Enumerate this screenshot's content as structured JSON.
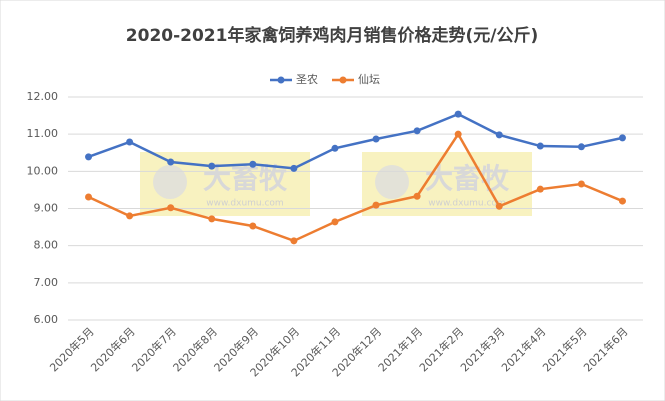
{
  "chart_data": {
    "type": "line",
    "title": "2020-2021年家禽饲养鸡肉月销售价格走势(元/公斤)",
    "categories": [
      "2020年5月",
      "2020年6月",
      "2020年7月",
      "2020年8月",
      "2020年9月",
      "2020年10月",
      "2020年11月",
      "2020年12月",
      "2021年1月",
      "2021年2月",
      "2021年3月",
      "2021年4月",
      "2021年5月",
      "2021年6月"
    ],
    "series": [
      {
        "name": "圣农",
        "color": "#4472c4",
        "values": [
          10.39,
          10.79,
          10.25,
          10.14,
          10.19,
          10.08,
          10.62,
          10.87,
          11.09,
          11.54,
          10.98,
          10.68,
          10.66,
          10.9
        ]
      },
      {
        "name": "仙坛",
        "color": "#ed7d31",
        "values": [
          9.31,
          8.8,
          9.02,
          8.72,
          8.53,
          8.13,
          8.64,
          9.09,
          9.33,
          11.0,
          9.06,
          9.52,
          9.66,
          9.2
        ]
      }
    ],
    "ylim": [
      6,
      12
    ],
    "yticks": [
      {
        "value": 6,
        "label": "6.00"
      },
      {
        "value": 7,
        "label": "7.00"
      },
      {
        "value": 8,
        "label": "8.00"
      },
      {
        "value": 9,
        "label": "9.00"
      },
      {
        "value": 10,
        "label": "10.00"
      },
      {
        "value": 11,
        "label": "11.00"
      },
      {
        "value": 12,
        "label": "12.00"
      }
    ],
    "grid": true,
    "legend": "top",
    "watermark": {
      "brand": "大畜牧",
      "url": "www.dxumu.com"
    }
  }
}
